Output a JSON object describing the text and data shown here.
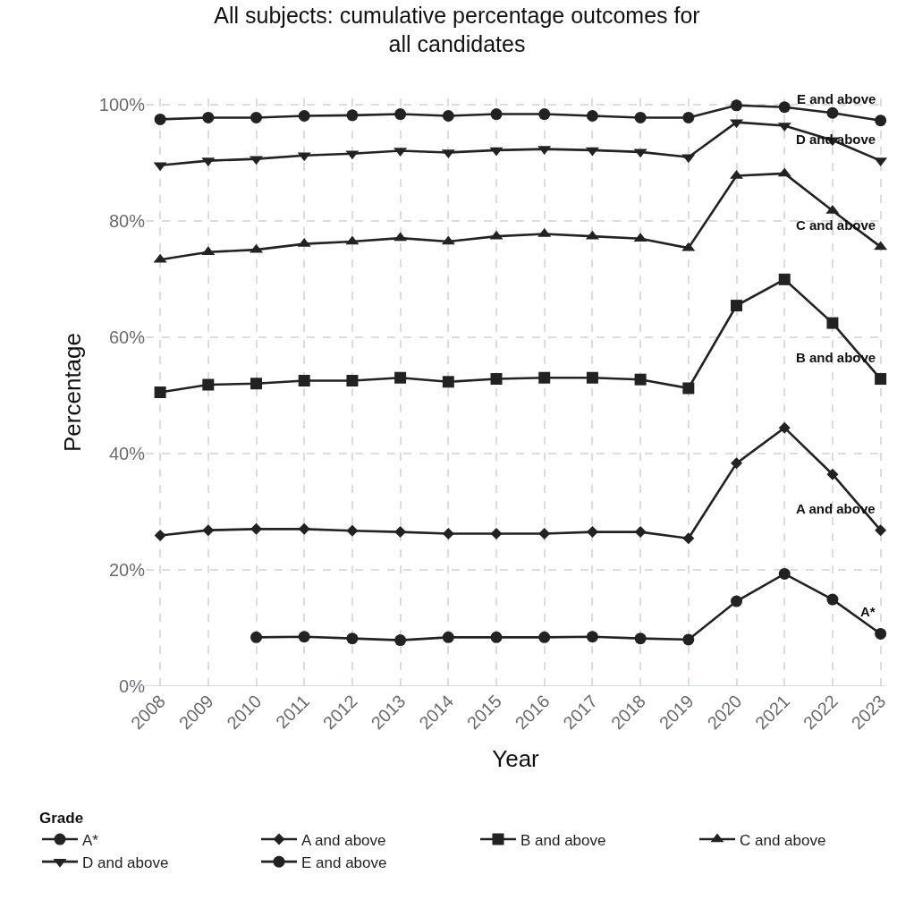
{
  "chart_data": {
    "type": "line",
    "title": "All subjects: cumulative percentage outcomes for all candidates",
    "xlabel": "Year",
    "ylabel": "Percentage",
    "legend_title": "Grade",
    "x": [
      2008,
      2009,
      2010,
      2011,
      2012,
      2013,
      2014,
      2015,
      2016,
      2017,
      2018,
      2019,
      2020,
      2021,
      2022,
      2023
    ],
    "series": [
      {
        "name": "A*",
        "color": "#222222",
        "marker": "circle",
        "values": [
          null,
          null,
          8.4,
          8.5,
          8.2,
          7.9,
          8.4,
          8.4,
          8.4,
          8.5,
          8.2,
          8.0,
          14.6,
          19.3,
          14.9,
          9.0
        ]
      },
      {
        "name": "A and above",
        "color": "#222222",
        "marker": "diamond",
        "values": [
          25.9,
          26.8,
          27.0,
          27.0,
          26.7,
          26.5,
          26.2,
          26.2,
          26.2,
          26.5,
          26.5,
          25.4,
          38.3,
          44.4,
          36.4,
          26.8
        ]
      },
      {
        "name": "B and above",
        "color": "#222222",
        "marker": "square",
        "values": [
          50.5,
          51.8,
          52.0,
          52.5,
          52.5,
          53.0,
          52.3,
          52.8,
          53.0,
          53.0,
          52.7,
          51.2,
          65.4,
          69.9,
          62.4,
          52.8
        ]
      },
      {
        "name": "C and above",
        "color": "#222222",
        "marker": "triangle",
        "values": [
          73.3,
          74.6,
          75.0,
          76.0,
          76.4,
          77.0,
          76.4,
          77.3,
          77.7,
          77.3,
          76.9,
          75.3,
          87.7,
          88.1,
          81.7,
          75.5
        ]
      },
      {
        "name": "D and above",
        "color": "#222222",
        "marker": "triangle-down",
        "values": [
          89.5,
          90.3,
          90.6,
          91.2,
          91.5,
          92.0,
          91.7,
          92.1,
          92.3,
          92.1,
          91.8,
          90.9,
          96.9,
          96.3,
          93.8,
          90.3
        ]
      },
      {
        "name": "E and above",
        "color": "#222222",
        "marker": "circle",
        "values": [
          97.4,
          97.7,
          97.7,
          98.0,
          98.1,
          98.3,
          98.0,
          98.3,
          98.3,
          98.0,
          97.7,
          97.7,
          99.8,
          99.5,
          98.5,
          97.2
        ]
      }
    ],
    "annotations": [
      "A*",
      "A and above",
      "B and above",
      "C and above",
      "D and above",
      "E and above"
    ],
    "xlim": [
      2007.7,
      2023.1
    ],
    "xticks": [
      2008,
      2009,
      2010,
      2011,
      2012,
      2013,
      2014,
      2015,
      2016,
      2017,
      2018,
      2019,
      2020,
      2021,
      2022,
      2023
    ],
    "ylim": [
      0,
      101
    ],
    "yticks": [
      {
        "value": 0,
        "label": "0%"
      },
      {
        "value": 20,
        "label": "20%"
      },
      {
        "value": 40,
        "label": "40%"
      },
      {
        "value": 60,
        "label": "60%"
      },
      {
        "value": 80,
        "label": "80%"
      },
      {
        "value": 100,
        "label": "100%"
      }
    ],
    "grid": true,
    "legend": "bottom",
    "line_style": "solid"
  }
}
